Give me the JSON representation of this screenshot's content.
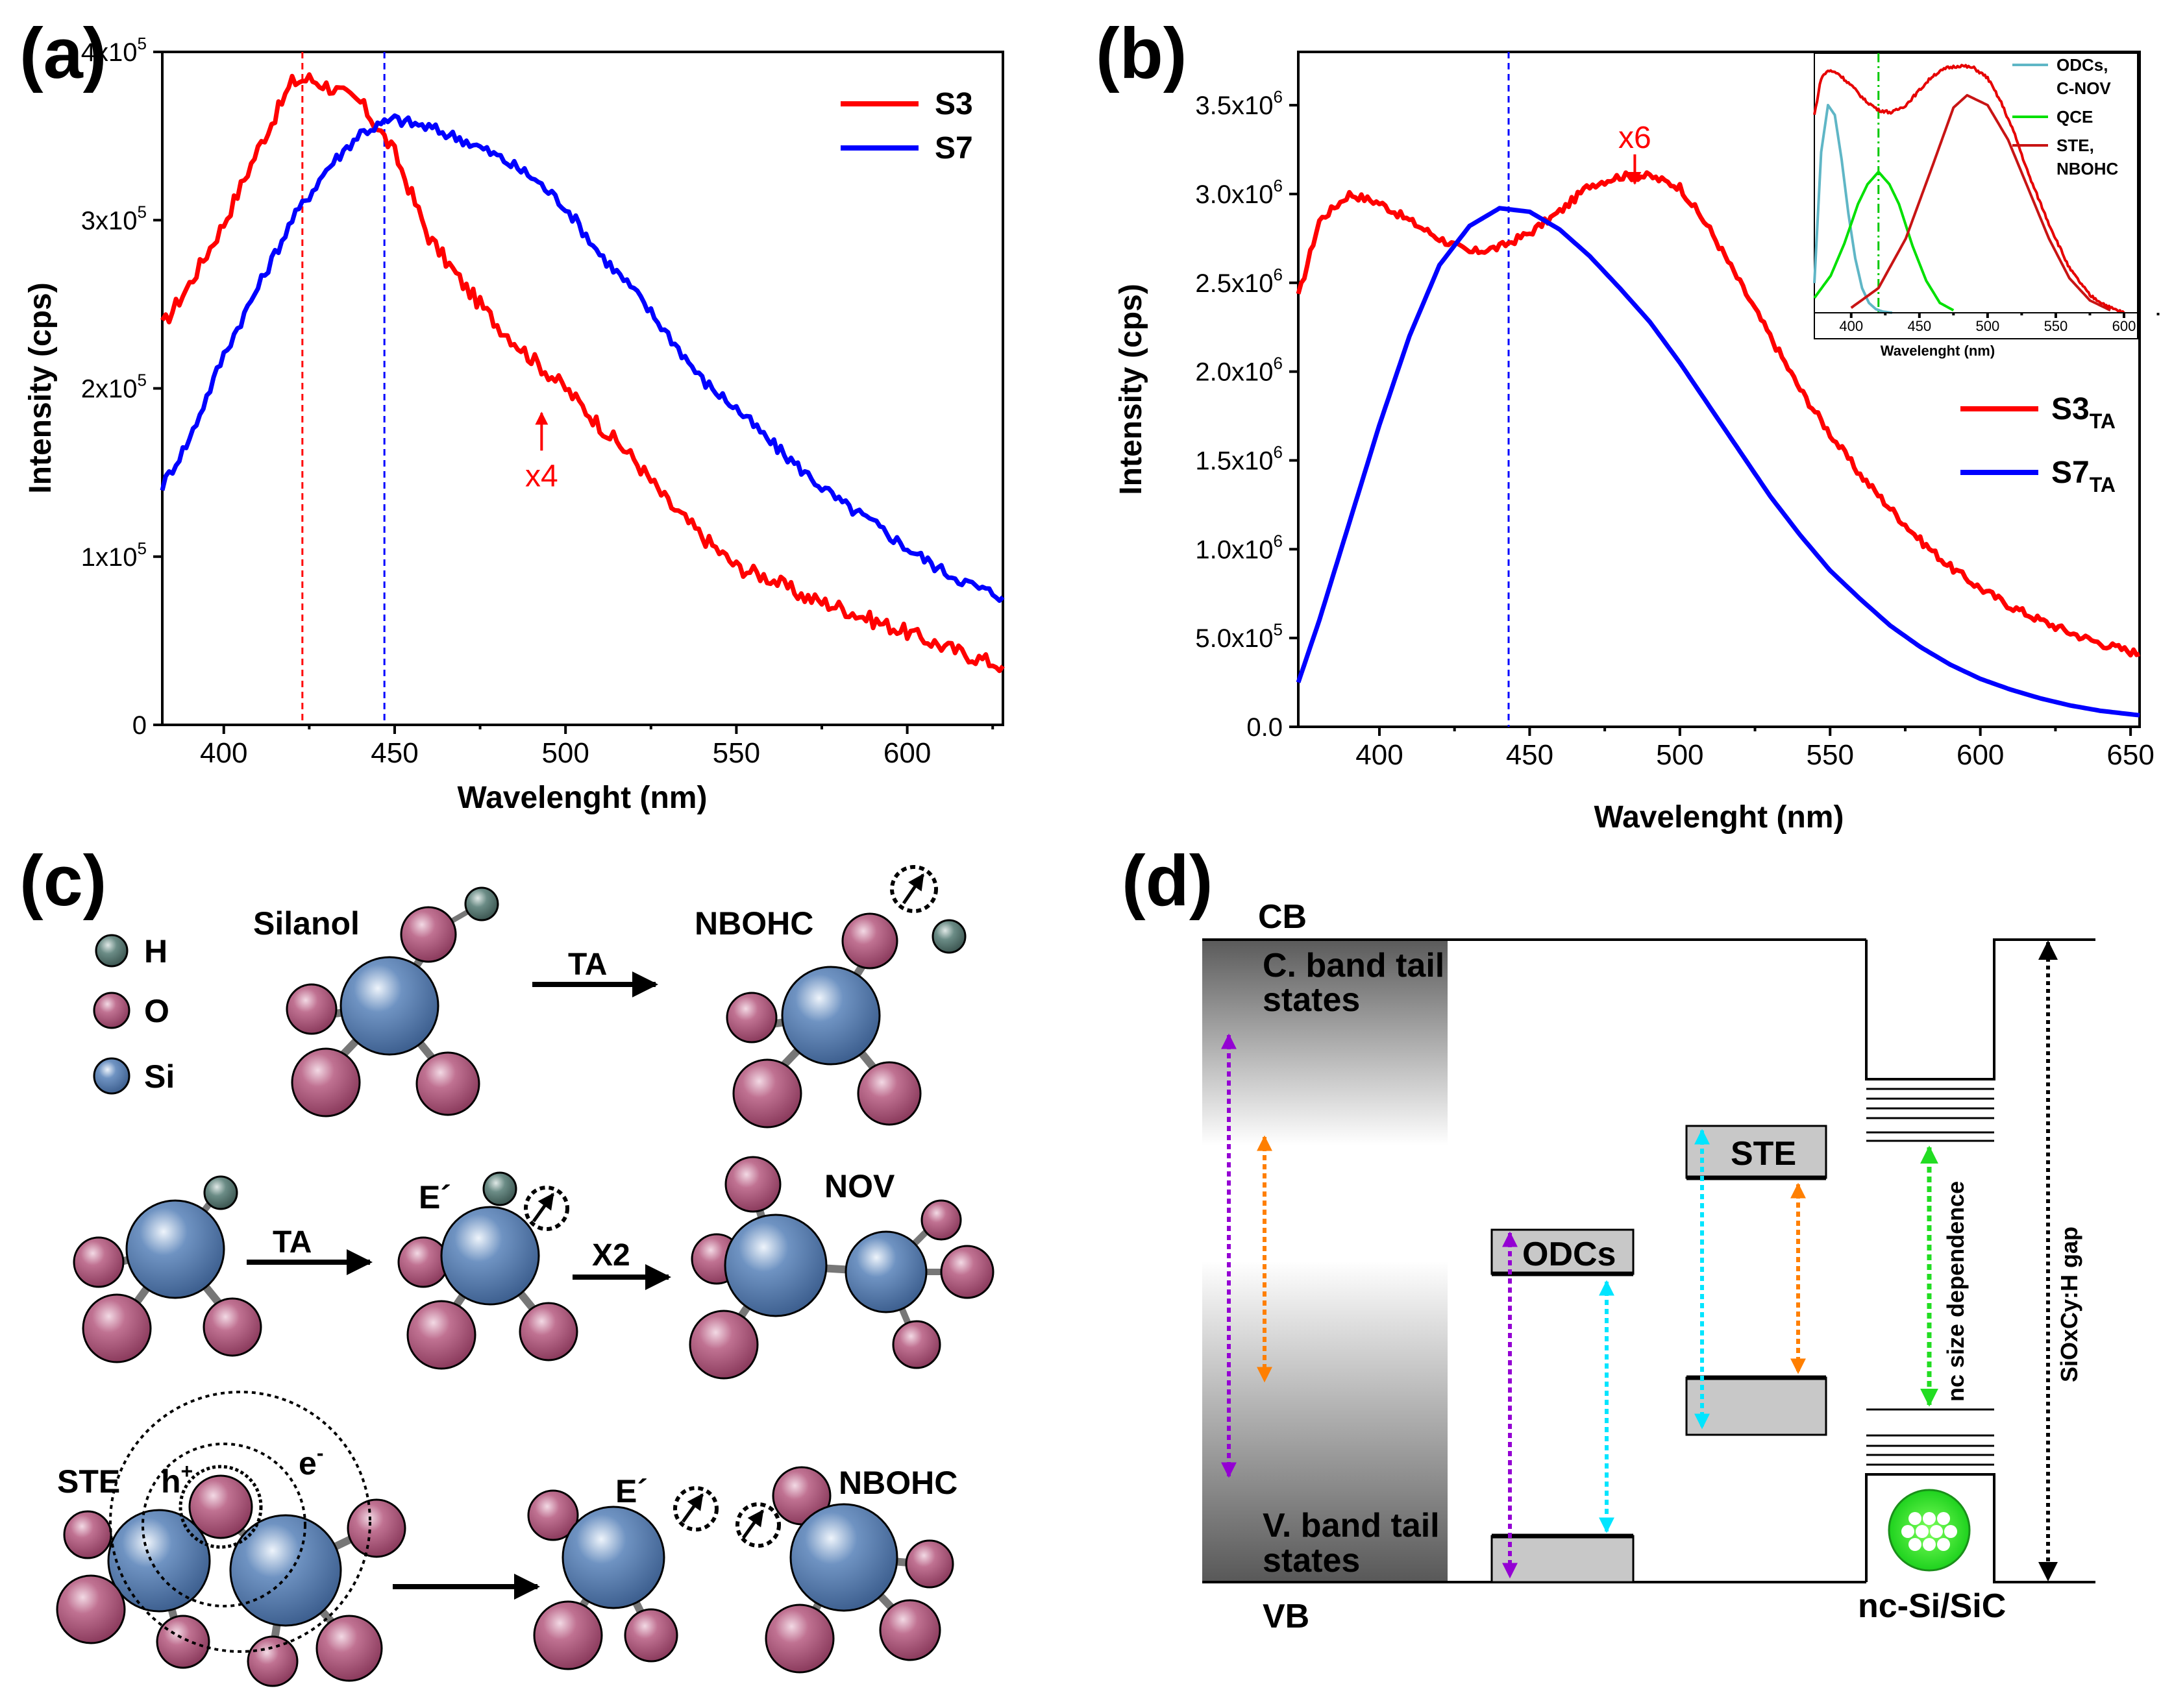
{
  "panel_labels": [
    "(a)",
    "(b)",
    "(c)",
    "(d)"
  ],
  "chart_data": [
    {
      "type": "line",
      "panel": "(a)",
      "xlabel": "Wavelenght (nm)",
      "ylabel": "Intensity (cps)",
      "xlim": [
        382,
        628
      ],
      "ylim": [
        0,
        400000
      ],
      "xticks": [
        400,
        450,
        500,
        550,
        600
      ],
      "yticks": [
        0,
        100000,
        200000,
        300000,
        400000
      ],
      "ytick_labels": [
        {
          "base": "0",
          "exp": ""
        },
        {
          "base": "1x10",
          "exp": "5"
        },
        {
          "base": "2x10",
          "exp": "5"
        },
        {
          "base": "3x10",
          "exp": "5"
        },
        {
          "base": "4x10",
          "exp": "5"
        }
      ],
      "vlines": [
        {
          "x": 423,
          "color": "#ff0000"
        },
        {
          "x": 447,
          "color": "#0000ff"
        }
      ],
      "annotation": {
        "text": "x4",
        "x": 493,
        "y": 190000,
        "color": "#ff0000"
      },
      "legend_position": "top-right",
      "series": [
        {
          "name": "S3",
          "color": "#ff0000",
          "x": [
            382,
            390,
            400,
            410,
            420,
            425,
            430,
            440,
            450,
            460,
            470,
            480,
            490,
            500,
            510,
            520,
            530,
            540,
            550,
            560,
            570,
            580,
            590,
            600,
            610,
            620,
            628
          ],
          "y": [
            237000,
            262000,
            298000,
            342000,
            382000,
            384000,
            380000,
            370000,
            340000,
            290000,
            262000,
            238000,
            218000,
            200000,
            178000,
            158000,
            132000,
            112000,
            94000,
            87000,
            76000,
            70000,
            62000,
            55000,
            47000,
            40000,
            35000
          ]
        },
        {
          "name": "S7",
          "color": "#0000ff",
          "x": [
            382,
            390,
            400,
            410,
            420,
            430,
            440,
            450,
            460,
            470,
            480,
            490,
            500,
            510,
            520,
            530,
            540,
            550,
            560,
            570,
            580,
            590,
            600,
            610,
            620,
            628
          ],
          "y": [
            142000,
            170000,
            220000,
            260000,
            300000,
            330000,
            352000,
            360000,
            355000,
            348000,
            338000,
            326000,
            308000,
            280000,
            258000,
            232000,
            205000,
            188000,
            168000,
            150000,
            133000,
            120000,
            105000,
            92000,
            82000,
            76000
          ]
        }
      ]
    },
    {
      "type": "line",
      "panel": "(b)",
      "xlabel": "Wavelenght (nm)",
      "ylabel": "Intensity (cps)",
      "xlim": [
        373,
        653
      ],
      "ylim": [
        0,
        3800000
      ],
      "xticks": [
        400,
        450,
        500,
        550,
        600,
        650
      ],
      "yticks": [
        0,
        500000,
        1000000,
        1500000,
        2000000,
        2500000,
        3000000,
        3500000
      ],
      "ytick_labels": [
        {
          "base": "0.0",
          "exp": ""
        },
        {
          "base": "5.0x10",
          "exp": "5"
        },
        {
          "base": "1.0x10",
          "exp": "6"
        },
        {
          "base": "1.5x10",
          "exp": "6"
        },
        {
          "base": "2.0x10",
          "exp": "6"
        },
        {
          "base": "2.5x10",
          "exp": "6"
        },
        {
          "base": "3.0x10",
          "exp": "6"
        },
        {
          "base": "3.5x10",
          "exp": "6"
        }
      ],
      "vlines": [
        {
          "x": 443,
          "color": "#0000ff"
        }
      ],
      "annotation": {
        "text": "x6",
        "x": 485,
        "y": 3150000,
        "color": "#ff0000"
      },
      "legend_position": "center-right",
      "series": [
        {
          "name": "S3",
          "sub": "TA",
          "color": "#ff0000",
          "x": [
            373,
            380,
            390,
            400,
            410,
            420,
            430,
            440,
            450,
            460,
            470,
            480,
            490,
            500,
            510,
            520,
            530,
            540,
            550,
            560,
            570,
            580,
            590,
            600,
            610,
            620,
            630,
            640,
            653
          ],
          "y": [
            2420000,
            2850000,
            3000000,
            2950000,
            2850000,
            2750000,
            2670000,
            2700000,
            2780000,
            2900000,
            3050000,
            3100000,
            3100000,
            3040000,
            2800000,
            2500000,
            2200000,
            1900000,
            1650000,
            1420000,
            1230000,
            1050000,
            900000,
            780000,
            680000,
            600000,
            530000,
            470000,
            410000
          ]
        },
        {
          "name": "S7",
          "sub": "TA",
          "color": "#0000ff",
          "x": [
            373,
            380,
            390,
            400,
            410,
            420,
            430,
            440,
            450,
            460,
            470,
            480,
            490,
            500,
            510,
            520,
            530,
            540,
            550,
            560,
            570,
            580,
            590,
            600,
            610,
            620,
            630,
            640,
            653
          ],
          "y": [
            250000,
            600000,
            1150000,
            1700000,
            2200000,
            2600000,
            2820000,
            2920000,
            2900000,
            2800000,
            2650000,
            2470000,
            2280000,
            2050000,
            1800000,
            1550000,
            1300000,
            1080000,
            880000,
            720000,
            570000,
            450000,
            350000,
            270000,
            210000,
            160000,
            120000,
            90000,
            65000
          ]
        }
      ]
    },
    {
      "type": "line",
      "panel": "(b) inset",
      "xlabel": "Wavelenght (nm)",
      "xlim": [
        373,
        610
      ],
      "ylim": [
        0,
        1.05
      ],
      "xticks": [
        400,
        450,
        500,
        550,
        600
      ],
      "vlines": [
        {
          "x": 420,
          "color": "#00c800"
        }
      ],
      "legend_position": "top-right",
      "series": [
        {
          "name": "ODCs,",
          "name2": "C-NOV",
          "color": "#5fb6c6",
          "x": [
            373,
            378,
            383,
            388,
            393,
            398,
            403,
            408,
            413,
            418,
            423,
            430
          ],
          "y": [
            0.12,
            0.65,
            0.84,
            0.8,
            0.62,
            0.4,
            0.22,
            0.1,
            0.04,
            0.015,
            0.005,
            0.0
          ]
        },
        {
          "name": "QCE",
          "name2": "",
          "color": "#00e000",
          "x": [
            373,
            385,
            395,
            405,
            412,
            420,
            428,
            435,
            445,
            455,
            465,
            475
          ],
          "y": [
            0.06,
            0.15,
            0.28,
            0.44,
            0.52,
            0.57,
            0.52,
            0.44,
            0.27,
            0.13,
            0.04,
            0.01
          ]
        },
        {
          "name": "STE,",
          "name2": "NBOHC",
          "color": "#c81414",
          "x": [
            400,
            420,
            440,
            460,
            475,
            485,
            500,
            515,
            530,
            545,
            560,
            575,
            590
          ],
          "y": [
            0.02,
            0.1,
            0.3,
            0.6,
            0.83,
            0.88,
            0.84,
            0.7,
            0.5,
            0.3,
            0.14,
            0.05,
            0.01
          ]
        },
        {
          "name": "",
          "name2": "",
          "color": "#e60000",
          "x": [
            373,
            378,
            383,
            390,
            400,
            410,
            420,
            430,
            440,
            450,
            460,
            470,
            480,
            490,
            500,
            510,
            520,
            530,
            545,
            560,
            575,
            590,
            600
          ],
          "y": [
            0.8,
            0.95,
            0.98,
            0.97,
            0.92,
            0.86,
            0.82,
            0.81,
            0.84,
            0.9,
            0.96,
            0.99,
            1.0,
            0.99,
            0.95,
            0.85,
            0.72,
            0.56,
            0.36,
            0.18,
            0.07,
            0.02,
            0.0
          ]
        }
      ]
    }
  ],
  "legend_a": {
    "s3": "S3",
    "s7": "S7"
  },
  "legend_b": {
    "s3": "S3",
    "s7": "S7",
    "sub": "TA"
  },
  "panel_c": {
    "legend": [
      "H",
      "O",
      "Si"
    ],
    "silanol": "Silanol",
    "nbohc": "NBOHC",
    "ta": "TA",
    "e_prime": "E´",
    "x2": "X2",
    "nov": "NOV",
    "ste": "STE",
    "h_plus": "h",
    "plus": "+",
    "e_minus": "e",
    "minus": "-"
  },
  "panel_d": {
    "cb": "CB",
    "vb": "VB",
    "c_band_tail_1": "C. band tail",
    "c_band_tail_2": "states",
    "v_band_tail_1": "V. band tail",
    "v_band_tail_2": "states",
    "odcs": "ODCs",
    "ste": "STE",
    "nc_size": "nc size dependence",
    "gap": "SiOxCy:H gap",
    "nc_label": "nc-Si/SiC"
  }
}
